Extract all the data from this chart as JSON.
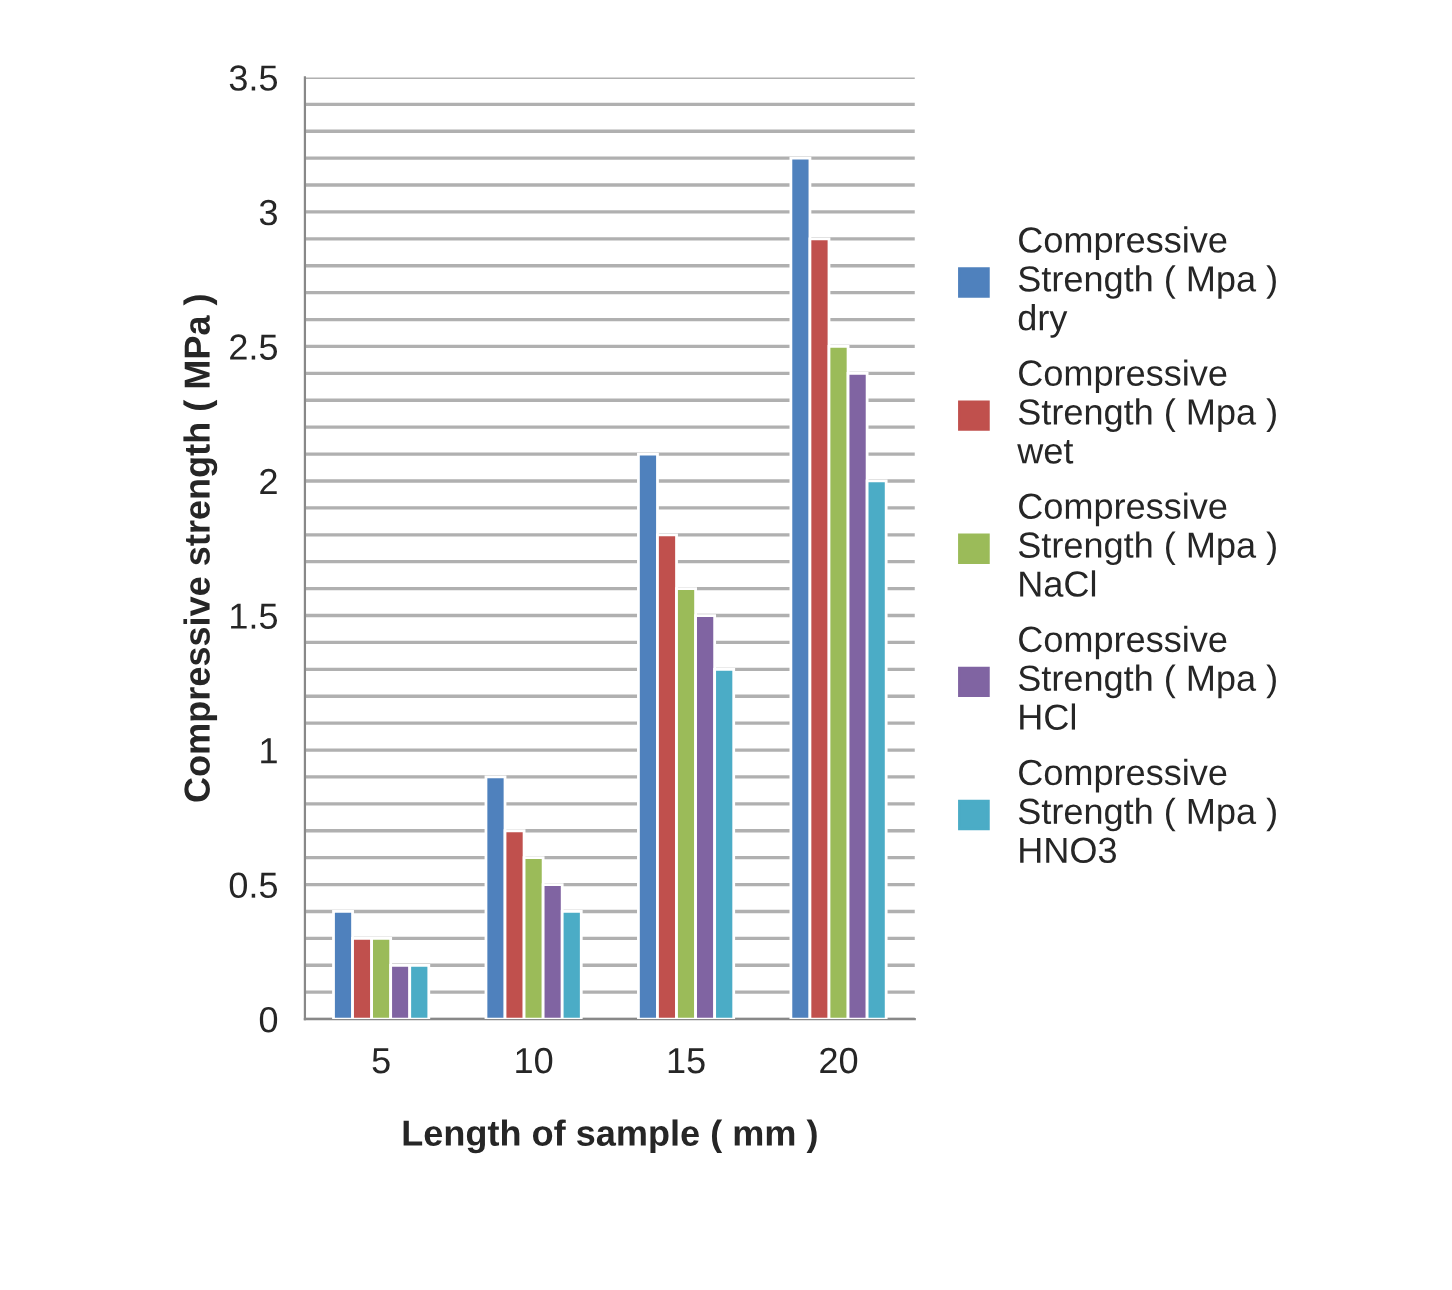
{
  "chart_data": {
    "type": "bar",
    "xlabel": "Length of sample ( mm )",
    "ylabel": "Compressive strength ( MPa )",
    "categories": [
      "5",
      "10",
      "15",
      "20"
    ],
    "series": [
      {
        "name": "Compressive\nStrength ( Mpa )\ndry",
        "color": "#4f81bd",
        "values": [
          0.4,
          0.9,
          2.1,
          3.2
        ]
      },
      {
        "name": "Compressive\nStrength ( Mpa )\nwet",
        "color": "#c0504d",
        "values": [
          0.3,
          0.7,
          1.8,
          2.9
        ]
      },
      {
        "name": "Compressive\nStrength ( Mpa )\nNaCl",
        "color": "#9bbb59",
        "values": [
          0.3,
          0.6,
          1.6,
          2.5
        ]
      },
      {
        "name": "Compressive\nStrength ( Mpa )\nHCl",
        "color": "#8064a2",
        "values": [
          0.2,
          0.5,
          1.5,
          2.4
        ]
      },
      {
        "name": "Compressive\nStrength ( Mpa )\nHNO3",
        "color": "#4bacc6",
        "values": [
          0.2,
          0.4,
          1.3,
          2.0
        ]
      }
    ],
    "ylim": [
      0,
      3.5
    ],
    "yticks": [
      0,
      {
        "value": 0.1,
        "label": null
      },
      {
        "value": 0.2,
        "label": null
      },
      {
        "value": 0.3,
        "label": null
      },
      {
        "value": 0.4,
        "label": null
      },
      0.5,
      {
        "value": 0.6,
        "label": null
      },
      {
        "value": 0.7,
        "label": null
      },
      {
        "value": 0.8,
        "label": null
      },
      {
        "value": 0.9,
        "label": null
      },
      1,
      {
        "value": 1.1,
        "label": null
      },
      {
        "value": 1.2,
        "label": null
      },
      {
        "value": 1.3,
        "label": null
      },
      {
        "value": 1.4,
        "label": null
      },
      1.5,
      {
        "value": 1.6,
        "label": null
      },
      {
        "value": 1.7,
        "label": null
      },
      {
        "value": 1.8,
        "label": null
      },
      {
        "value": 1.9,
        "label": null
      },
      2,
      {
        "value": 2.1,
        "label": null
      },
      {
        "value": 2.2,
        "label": null
      },
      {
        "value": 2.3,
        "label": null
      },
      {
        "value": 2.4,
        "label": null
      },
      2.5,
      {
        "value": 2.6,
        "label": null
      },
      {
        "value": 2.7,
        "label": null
      },
      {
        "value": 2.8,
        "label": null
      },
      {
        "value": 2.9,
        "label": null
      },
      3,
      {
        "value": 3.1,
        "label": null
      },
      {
        "value": 3.2,
        "label": null
      },
      {
        "value": 3.3,
        "label": null
      },
      {
        "value": 3.4,
        "label": null
      },
      3.5
    ],
    "grid": "y",
    "legend": "right"
  }
}
